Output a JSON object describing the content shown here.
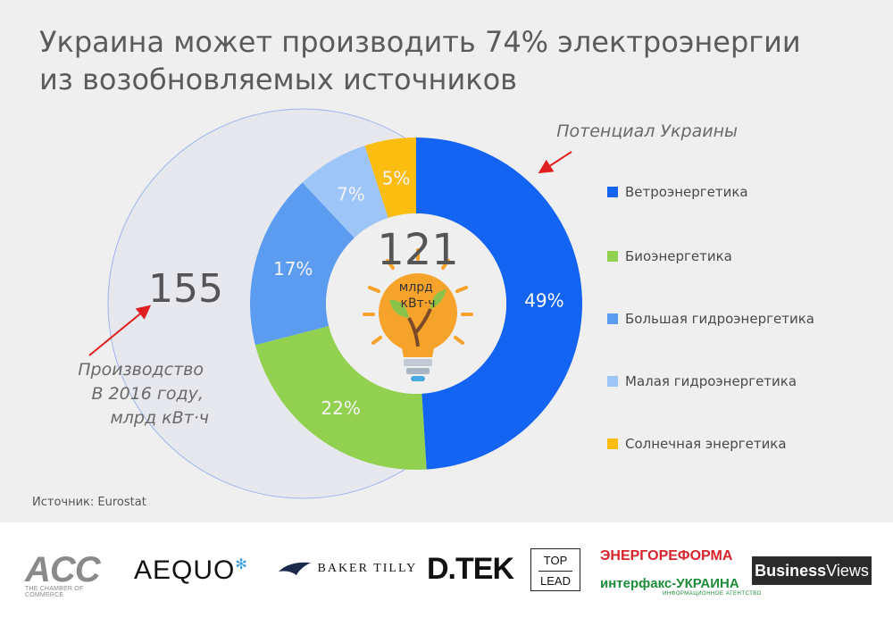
{
  "title": {
    "line1": "Украина может производить 74% электроэнергии",
    "line2": "из возобновляемых источников"
  },
  "chart_data": {
    "type": "pie",
    "subtype": "donut",
    "total_potential": "121",
    "total_potential_unit": "млрд кВт·ч",
    "potential_label": "Потенциал Украины",
    "production_2016": "155",
    "production_label": [
      "Производство",
      "В 2016 году,",
      "млрд кВт·ч"
    ],
    "categories": [
      "Ветроэнергетика",
      "Биоэнергетика",
      "Большая гидроэнергетика",
      "Малая гидроэнергетика",
      "Солнечная энергетика"
    ],
    "values": [
      49,
      22,
      17,
      7,
      5
    ],
    "value_labels": [
      "49%",
      "22%",
      "17%",
      "7%",
      "5%"
    ],
    "colors": [
      "#1464f4",
      "#92d050",
      "#5b9cf0",
      "#9ec5f8",
      "#fbbd0f"
    ],
    "legend_position": "right"
  },
  "source": "Источник: Eurostat",
  "logos": {
    "acc": "ACC",
    "acc_sub": "THE CHAMBER OF COMMERCE",
    "aequo": "AEQUO",
    "baker_tilly": "BAKER TILLY",
    "dtek": "D.TEK",
    "toplead_top": "TOP",
    "toplead_bottom": "LEAD",
    "energoreforma": "ЭНЕРГОРЕФОРМА",
    "interfax": "интерфакс-УКРАИНА",
    "interfax_sub": "ИНФОРМАЦИОННОЕ АГЕНТСТВО",
    "business": "Business",
    "views": "Views"
  }
}
